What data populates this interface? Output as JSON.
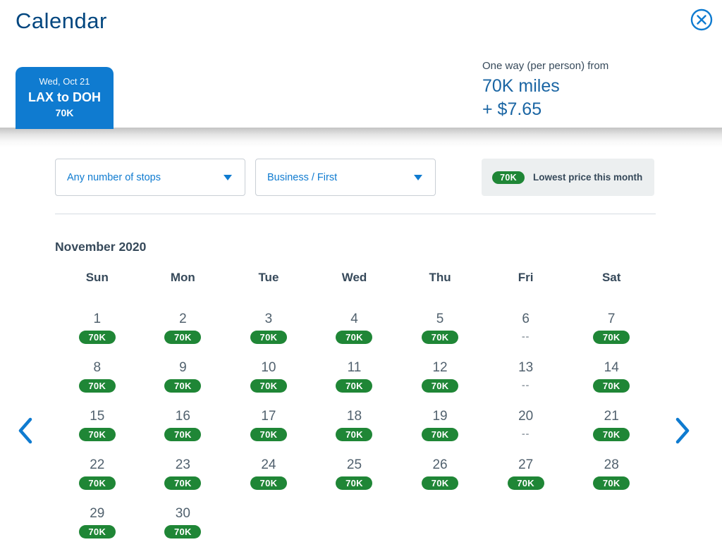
{
  "modal": {
    "title": "Calendar",
    "close_icon": "circle-x-icon"
  },
  "trip_tab": {
    "date": "Wed, Oct 21",
    "route": "LAX to DOH",
    "miles": "70K"
  },
  "price_summary": {
    "label": "One way (per person) from",
    "miles": "70K miles",
    "taxes": "+ $7.65"
  },
  "filters": {
    "stops_value": "Any number of stops",
    "cabin_value": "Business / First"
  },
  "legend": {
    "badge": "70K",
    "label": "Lowest price this month"
  },
  "calendar": {
    "month_title": "November 2020",
    "day_names": [
      "Sun",
      "Mon",
      "Tue",
      "Wed",
      "Thu",
      "Fri",
      "Sat"
    ],
    "no_price_placeholder": "--",
    "days": [
      {
        "day": 1,
        "price": "70K"
      },
      {
        "day": 2,
        "price": "70K"
      },
      {
        "day": 3,
        "price": "70K"
      },
      {
        "day": 4,
        "price": "70K"
      },
      {
        "day": 5,
        "price": "70K"
      },
      {
        "day": 6,
        "price": null
      },
      {
        "day": 7,
        "price": "70K"
      },
      {
        "day": 8,
        "price": "70K"
      },
      {
        "day": 9,
        "price": "70K"
      },
      {
        "day": 10,
        "price": "70K"
      },
      {
        "day": 11,
        "price": "70K"
      },
      {
        "day": 12,
        "price": "70K"
      },
      {
        "day": 13,
        "price": null
      },
      {
        "day": 14,
        "price": "70K"
      },
      {
        "day": 15,
        "price": "70K"
      },
      {
        "day": 16,
        "price": "70K"
      },
      {
        "day": 17,
        "price": "70K"
      },
      {
        "day": 18,
        "price": "70K"
      },
      {
        "day": 19,
        "price": "70K"
      },
      {
        "day": 20,
        "price": null
      },
      {
        "day": 21,
        "price": "70K"
      },
      {
        "day": 22,
        "price": "70K"
      },
      {
        "day": 23,
        "price": "70K"
      },
      {
        "day": 24,
        "price": "70K"
      },
      {
        "day": 25,
        "price": "70K"
      },
      {
        "day": 26,
        "price": "70K"
      },
      {
        "day": 27,
        "price": "70K"
      },
      {
        "day": 28,
        "price": "70K"
      },
      {
        "day": 29,
        "price": "70K"
      },
      {
        "day": 30,
        "price": "70K"
      }
    ]
  },
  "colors": {
    "accent_blue": "#0F7BD0",
    "heading_blue": "#00467F",
    "price_blue": "#1A65A3",
    "badge_green": "#1F8636",
    "slate_text": "#36495A",
    "date_gray": "#51616E",
    "dash_gray": "#97A0A8",
    "legend_bg": "#ECEFF0",
    "divider_gray": "#D5DBE1"
  }
}
